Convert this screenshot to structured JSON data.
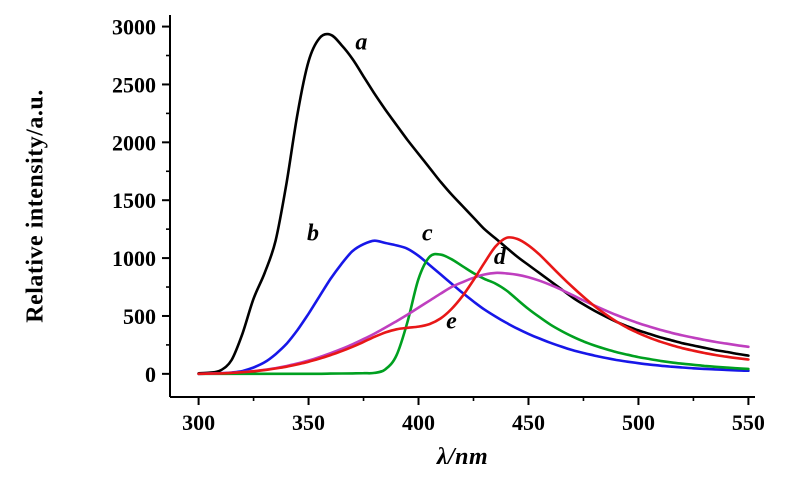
{
  "figure": {
    "background": "#ffffff",
    "axis_color": "#000000"
  },
  "chart_data": {
    "type": "line",
    "title": "",
    "xlabel": "λ/nm",
    "ylabel": "Relative intensity/a.u.",
    "xlim": [
      287,
      553
    ],
    "ylim": [
      -200,
      3100
    ],
    "x_ticks": [
      300,
      350,
      400,
      450,
      500,
      550
    ],
    "y_ticks": [
      0,
      500,
      1000,
      1500,
      2000,
      2500,
      3000
    ],
    "x_minor_ticks": [
      325,
      375,
      425,
      475,
      525
    ],
    "y_minor_ticks": [
      250,
      750,
      1250,
      1750,
      2250,
      2750
    ],
    "grid": false,
    "legend_position": "none",
    "x": [
      300,
      305,
      310,
      315,
      320,
      325,
      330,
      335,
      340,
      345,
      350,
      355,
      360,
      365,
      370,
      375,
      380,
      385,
      390,
      395,
      400,
      405,
      410,
      415,
      420,
      425,
      430,
      435,
      440,
      445,
      450,
      455,
      460,
      465,
      470,
      475,
      480,
      485,
      490,
      495,
      500,
      505,
      510,
      515,
      520,
      525,
      530,
      535,
      540,
      545,
      550
    ],
    "series": [
      {
        "name": "a",
        "color": "#000000",
        "values": [
          5,
          10,
          30,
          120,
          350,
          650,
          870,
          1150,
          1650,
          2250,
          2700,
          2900,
          2930,
          2840,
          2720,
          2570,
          2420,
          2280,
          2150,
          2020,
          1900,
          1780,
          1660,
          1550,
          1450,
          1350,
          1250,
          1170,
          1090,
          1010,
          940,
          870,
          800,
          730,
          660,
          600,
          545,
          495,
          450,
          410,
          375,
          345,
          315,
          290,
          265,
          245,
          225,
          205,
          190,
          172,
          158
        ]
      },
      {
        "name": "b",
        "color": "#1717e8",
        "values": [
          0,
          2,
          5,
          12,
          25,
          55,
          100,
          170,
          260,
          380,
          520,
          670,
          820,
          950,
          1060,
          1120,
          1150,
          1130,
          1110,
          1080,
          1020,
          940,
          860,
          780,
          700,
          625,
          555,
          495,
          440,
          390,
          345,
          305,
          268,
          235,
          205,
          180,
          158,
          138,
          120,
          105,
          92,
          80,
          70,
          62,
          55,
          48,
          43,
          38,
          34,
          30,
          27
        ]
      },
      {
        "name": "c",
        "color": "#00a020",
        "values": [
          0,
          0,
          0,
          0,
          0,
          0,
          0,
          0,
          0,
          0,
          0,
          0,
          2,
          3,
          4,
          6,
          8,
          40,
          160,
          450,
          820,
          1010,
          1030,
          990,
          930,
          870,
          820,
          780,
          720,
          640,
          560,
          490,
          425,
          370,
          322,
          280,
          245,
          215,
          188,
          165,
          145,
          128,
          112,
          99,
          88,
          78,
          69,
          61,
          54,
          48,
          43
        ]
      },
      {
        "name": "d",
        "color": "#bf3fbf",
        "values": [
          0,
          2,
          5,
          10,
          16,
          24,
          35,
          50,
          68,
          90,
          115,
          145,
          178,
          215,
          255,
          300,
          348,
          400,
          455,
          512,
          572,
          632,
          692,
          750,
          792,
          830,
          858,
          872,
          868,
          856,
          835,
          805,
          768,
          726,
          680,
          634,
          590,
          548,
          508,
          472,
          438,
          408,
          380,
          355,
          332,
          312,
          293,
          276,
          261,
          247,
          234
        ]
      },
      {
        "name": "e",
        "color": "#e81717",
        "values": [
          0,
          2,
          4,
          8,
          14,
          22,
          32,
          46,
          62,
          82,
          105,
          132,
          162,
          196,
          234,
          276,
          320,
          358,
          385,
          398,
          408,
          430,
          478,
          560,
          672,
          810,
          960,
          1100,
          1175,
          1165,
          1110,
          1030,
          935,
          840,
          750,
          665,
          585,
          515,
          452,
          398,
          352,
          312,
          278,
          248,
          222,
          200,
          180,
          163,
          148,
          135,
          124
        ]
      }
    ],
    "annotations": [
      {
        "label": "a",
        "x": 374,
        "y": 2800,
        "color": "#000000"
      },
      {
        "label": "b",
        "x": 352,
        "y": 1150,
        "color": "#000000"
      },
      {
        "label": "c",
        "x": 404,
        "y": 1150,
        "color": "#000000"
      },
      {
        "label": "d",
        "x": 437,
        "y": 950,
        "color": "#000000"
      },
      {
        "label": "e",
        "x": 415,
        "y": 390,
        "color": "#000000"
      }
    ]
  }
}
